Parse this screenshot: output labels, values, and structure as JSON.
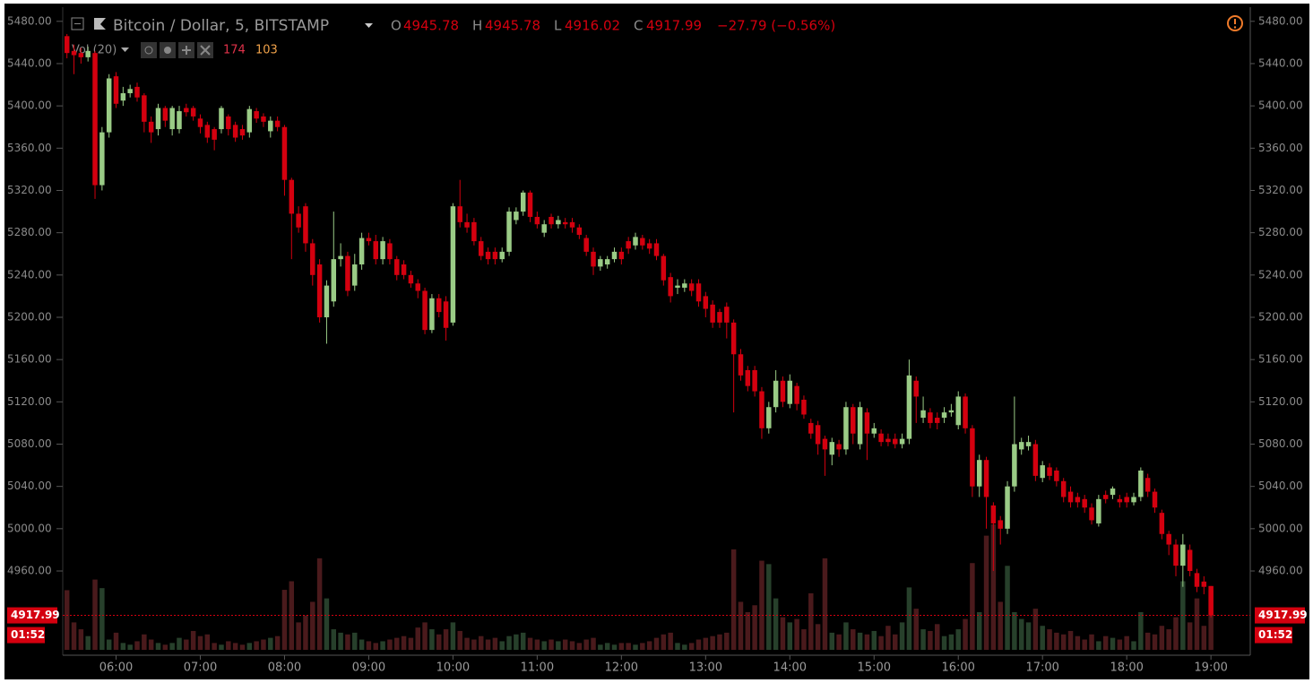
{
  "chart_data": {
    "type": "candlestick",
    "title": "Bitcoin / Dollar, 5, BITSTAMP",
    "ohlc_labels": [
      "O",
      "H",
      "L",
      "C"
    ],
    "change": "−27.79 (−0.56%)",
    "volume_label": "Vol (20)",
    "volume_ma": 103,
    "countdown": "01:52",
    "up_color": "#9acb86",
    "down_color": "#d4000f",
    "volume_up_color": "#27402b",
    "volume_down_color": "#4a1a1c",
    "x": [
      325,
      330,
      335,
      340,
      345,
      350,
      355,
      360,
      365,
      370,
      375,
      380,
      385,
      390,
      395,
      400,
      405,
      410,
      415,
      420,
      425,
      430,
      435,
      440,
      445,
      450,
      455,
      460,
      465,
      470,
      475,
      480,
      485,
      490,
      495,
      500,
      505,
      510,
      515,
      520,
      525,
      530,
      535,
      540,
      545,
      550,
      555,
      560,
      565,
      570,
      575,
      580,
      585,
      590,
      595,
      600,
      605,
      610,
      615,
      620,
      625,
      630,
      635,
      640,
      645,
      650,
      655,
      660,
      665,
      670,
      675,
      680,
      685,
      690,
      695,
      700,
      705,
      710,
      715,
      720,
      725,
      730,
      735,
      740,
      745,
      750,
      755,
      760,
      765,
      770,
      775,
      780,
      785,
      790,
      795,
      800,
      805,
      810,
      815,
      820,
      825,
      830,
      835,
      840,
      845,
      850,
      855,
      860,
      865,
      870,
      875,
      880,
      885,
      890,
      895,
      900,
      905,
      910,
      915,
      920,
      925,
      930,
      935,
      940,
      945,
      950,
      955,
      960,
      965,
      970,
      975,
      980,
      985,
      990,
      995,
      1000,
      1005,
      1010,
      1015,
      1020,
      1025,
      1030,
      1035,
      1040,
      1045,
      1050,
      1055,
      1060,
      1065,
      1070,
      1075,
      1080,
      1085,
      1090,
      1095,
      1100,
      1105,
      1110,
      1115,
      1120,
      1125,
      1130,
      1135,
      1140
    ],
    "open": [
      5466,
      5452,
      5450,
      5446,
      5450,
      5325,
      5375,
      5428,
      5405,
      5412,
      5418,
      5410,
      5385,
      5378,
      5398,
      5378,
      5378,
      5398,
      5398,
      5388,
      5382,
      5378,
      5378,
      5390,
      5382,
      5378,
      5375,
      5395,
      5390,
      5376,
      5386,
      5380,
      5330,
      5298,
      5305,
      5270,
      5250,
      5200,
      5215,
      5255,
      5258,
      5230,
      5250,
      5275,
      5272,
      5255,
      5270,
      5255,
      5250,
      5240,
      5232,
      5225,
      5188,
      5218,
      5215,
      5195,
      5305,
      5290,
      5290,
      5272,
      5262,
      5262,
      5255,
      5262,
      5292,
      5300,
      5318,
      5295,
      5280,
      5295,
      5288,
      5290,
      5290,
      5285,
      5275,
      5262,
      5248,
      5250,
      5255,
      5262,
      5272,
      5268,
      5275,
      5270,
      5270,
      5258,
      5238,
      5228,
      5228,
      5232,
      5232,
      5220,
      5212,
      5205,
      5210,
      5195,
      5165,
      5150,
      5150,
      5130,
      5095,
      5115,
      5140,
      5118,
      5135,
      5122,
      5100,
      5098,
      5085,
      5070,
      5080,
      5075,
      5115,
      5080,
      5110,
      5090,
      5090,
      5085,
      5085,
      5080,
      5085,
      5140,
      5105,
      5110,
      5105,
      5105,
      5110,
      5098,
      5125,
      5095,
      5040,
      5065,
      5022,
      5008,
      5000,
      5040,
      5075,
      5078,
      5080,
      5048,
      5058,
      5055,
      5045,
      5035,
      5030,
      5028,
      5020,
      5005,
      5032,
      5032,
      5028,
      5030,
      5025,
      5030,
      5048,
      5035,
      5015,
      4995,
      4985,
      4965,
      4980,
      4958,
      4950,
      4945.78
    ],
    "high": [
      5468,
      5458,
      5455,
      5456,
      5452,
      5380,
      5430,
      5432,
      5418,
      5420,
      5422,
      5412,
      5390,
      5402,
      5400,
      5400,
      5400,
      5402,
      5400,
      5392,
      5385,
      5380,
      5400,
      5392,
      5385,
      5382,
      5400,
      5398,
      5393,
      5390,
      5390,
      5382,
      5332,
      5305,
      5308,
      5274,
      5255,
      5235,
      5300,
      5270,
      5262,
      5260,
      5280,
      5280,
      5278,
      5276,
      5274,
      5258,
      5254,
      5244,
      5236,
      5228,
      5222,
      5222,
      5220,
      5308,
      5330,
      5298,
      5294,
      5276,
      5266,
      5266,
      5266,
      5304,
      5304,
      5320,
      5320,
      5300,
      5292,
      5298,
      5296,
      5294,
      5294,
      5288,
      5278,
      5266,
      5258,
      5258,
      5266,
      5266,
      5276,
      5280,
      5278,
      5274,
      5274,
      5260,
      5242,
      5236,
      5236,
      5236,
      5236,
      5224,
      5216,
      5208,
      5214,
      5198,
      5170,
      5154,
      5154,
      5134,
      5120,
      5150,
      5144,
      5146,
      5138,
      5126,
      5104,
      5102,
      5088,
      5086,
      5084,
      5120,
      5118,
      5120,
      5114,
      5100,
      5094,
      5090,
      5090,
      5090,
      5160,
      5144,
      5125,
      5114,
      5110,
      5115,
      5118,
      5130,
      5128,
      5098,
      5070,
      5068,
      5025,
      5012,
      5045,
      5125,
      5086,
      5088,
      5084,
      5064,
      5062,
      5058,
      5048,
      5040,
      5034,
      5032,
      5024,
      5032,
      5036,
      5040,
      5032,
      5034,
      5034,
      5058,
      5052,
      5038,
      5018,
      4998,
      4990,
      4995,
      4985,
      4962,
      4955,
      4945.78
    ],
    "low": [
      5445,
      5430,
      5440,
      5442,
      5312,
      5320,
      5370,
      5398,
      5400,
      5408,
      5404,
      5375,
      5365,
      5372,
      5380,
      5372,
      5374,
      5390,
      5386,
      5374,
      5365,
      5358,
      5374,
      5372,
      5366,
      5368,
      5370,
      5384,
      5380,
      5370,
      5376,
      5315,
      5255,
      5280,
      5262,
      5230,
      5195,
      5175,
      5210,
      5248,
      5220,
      5225,
      5245,
      5268,
      5250,
      5250,
      5250,
      5235,
      5236,
      5228,
      5218,
      5184,
      5185,
      5200,
      5178,
      5192,
      5285,
      5280,
      5268,
      5254,
      5250,
      5250,
      5252,
      5258,
      5288,
      5296,
      5290,
      5284,
      5276,
      5284,
      5284,
      5284,
      5280,
      5274,
      5258,
      5240,
      5244,
      5246,
      5252,
      5250,
      5260,
      5264,
      5264,
      5260,
      5254,
      5230,
      5214,
      5222,
      5224,
      5220,
      5210,
      5200,
      5190,
      5190,
      5180,
      5110,
      5140,
      5130,
      5125,
      5085,
      5090,
      5110,
      5115,
      5114,
      5112,
      5104,
      5085,
      5070,
      5050,
      5060,
      5068,
      5070,
      5080,
      5075,
      5065,
      5086,
      5078,
      5078,
      5076,
      5076,
      5080,
      5100,
      5100,
      5095,
      5094,
      5100,
      5106,
      5094,
      5090,
      5030,
      5030,
      5000,
      4960,
      4985,
      4995,
      5035,
      5070,
      5074,
      5045,
      5044,
      5046,
      5040,
      5025,
      5020,
      5020,
      5015,
      5004,
      5002,
      5024,
      5028,
      5020,
      5020,
      5022,
      5026,
      5030,
      5015,
      4990,
      4975,
      4955,
      4945,
      4955,
      4940,
      4938,
      4916.02
    ],
    "close": [
      5450,
      5448,
      5446,
      5452,
      5325,
      5375,
      5426,
      5402,
      5412,
      5416,
      5408,
      5385,
      5375,
      5398,
      5386,
      5398,
      5395,
      5394,
      5390,
      5380,
      5370,
      5368,
      5398,
      5378,
      5370,
      5372,
      5397,
      5388,
      5385,
      5386,
      5380,
      5330,
      5298,
      5285,
      5270,
      5240,
      5200,
      5230,
      5255,
      5258,
      5225,
      5250,
      5275,
      5272,
      5255,
      5272,
      5255,
      5240,
      5240,
      5232,
      5225,
      5188,
      5218,
      5205,
      5190,
      5305,
      5290,
      5285,
      5272,
      5258,
      5255,
      5255,
      5262,
      5300,
      5300,
      5318,
      5295,
      5288,
      5288,
      5288,
      5292,
      5288,
      5285,
      5278,
      5262,
      5248,
      5255,
      5255,
      5262,
      5255,
      5265,
      5276,
      5268,
      5265,
      5258,
      5235,
      5220,
      5230,
      5232,
      5225,
      5215,
      5208,
      5195,
      5195,
      5195,
      5165,
      5145,
      5135,
      5130,
      5095,
      5115,
      5140,
      5120,
      5140,
      5118,
      5108,
      5090,
      5080,
      5075,
      5082,
      5075,
      5115,
      5090,
      5115,
      5090,
      5095,
      5082,
      5082,
      5080,
      5085,
      5145,
      5125,
      5112,
      5100,
      5100,
      5110,
      5112,
      5125,
      5095,
      5040,
      5065,
      5030,
      5005,
      5000,
      5040,
      5080,
      5082,
      5082,
      5050,
      5060,
      5050,
      5045,
      5030,
      5025,
      5025,
      5020,
      5008,
      5028,
      5028,
      5038,
      5025,
      5025,
      5030,
      5055,
      5035,
      5020,
      4995,
      4985,
      4965,
      4985,
      4960,
      4945,
      4945,
      4917.99
    ],
    "volume": [
      174,
      80,
      60,
      40,
      205,
      180,
      30,
      50,
      20,
      15,
      25,
      45,
      30,
      20,
      15,
      20,
      35,
      30,
      55,
      40,
      45,
      20,
      15,
      25,
      20,
      15,
      20,
      25,
      30,
      35,
      40,
      175,
      200,
      80,
      100,
      140,
      267,
      150,
      60,
      50,
      45,
      50,
      30,
      25,
      20,
      25,
      30,
      35,
      40,
      35,
      65,
      80,
      60,
      45,
      60,
      80,
      55,
      35,
      30,
      40,
      30,
      35,
      25,
      40,
      45,
      50,
      35,
      30,
      25,
      30,
      25,
      30,
      25,
      20,
      30,
      35,
      15,
      20,
      15,
      20,
      20,
      15,
      20,
      25,
      35,
      45,
      50,
      20,
      15,
      20,
      30,
      35,
      40,
      45,
      50,
      293,
      140,
      110,
      130,
      260,
      250,
      150,
      95,
      80,
      90,
      60,
      165,
      75,
      267,
      50,
      45,
      80,
      60,
      50,
      45,
      55,
      40,
      70,
      45,
      80,
      182,
      120,
      60,
      55,
      75,
      40,
      45,
      60,
      90,
      253,
      110,
      333,
      366,
      140,
      245,
      110,
      90,
      80,
      120,
      70,
      60,
      50,
      45,
      55,
      40,
      30,
      45,
      25,
      40,
      35,
      30,
      40,
      25,
      110,
      50,
      45,
      70,
      60,
      95,
      200,
      80,
      150,
      70,
      174
    ],
    "xlim": [
      322,
      1168
    ],
    "xticks": [
      {
        "value": 360,
        "label": "06:00"
      },
      {
        "value": 420,
        "label": "07:00"
      },
      {
        "value": 480,
        "label": "08:00"
      },
      {
        "value": 540,
        "label": "09:00"
      },
      {
        "value": 600,
        "label": "10:00"
      },
      {
        "value": 660,
        "label": "11:00"
      },
      {
        "value": 720,
        "label": "12:00"
      },
      {
        "value": 780,
        "label": "13:00"
      },
      {
        "value": 840,
        "label": "14:00"
      },
      {
        "value": 900,
        "label": "15:00"
      },
      {
        "value": 960,
        "label": "16:00"
      },
      {
        "value": 1020,
        "label": "17:00"
      },
      {
        "value": 1080,
        "label": "18:00"
      },
      {
        "value": 1140,
        "label": "19:00"
      }
    ],
    "ylim": [
      4882,
      5490
    ],
    "yticks": [
      {
        "value": 4960,
        "label": "4960.00"
      },
      {
        "value": 5000,
        "label": "5000.00"
      },
      {
        "value": 5040,
        "label": "5040.00"
      },
      {
        "value": 5080,
        "label": "5080.00"
      },
      {
        "value": 5120,
        "label": "5120.00"
      },
      {
        "value": 5160,
        "label": "5160.00"
      },
      {
        "value": 5200,
        "label": "5200.00"
      },
      {
        "value": 5240,
        "label": "5240.00"
      },
      {
        "value": 5280,
        "label": "5280.00"
      },
      {
        "value": 5320,
        "label": "5320.00"
      },
      {
        "value": 5360,
        "label": "5360.00"
      },
      {
        "value": 5400,
        "label": "5400.00"
      },
      {
        "value": 5440,
        "label": "5440.00"
      },
      {
        "value": 5480,
        "label": "5480.00"
      }
    ],
    "grid": false
  }
}
